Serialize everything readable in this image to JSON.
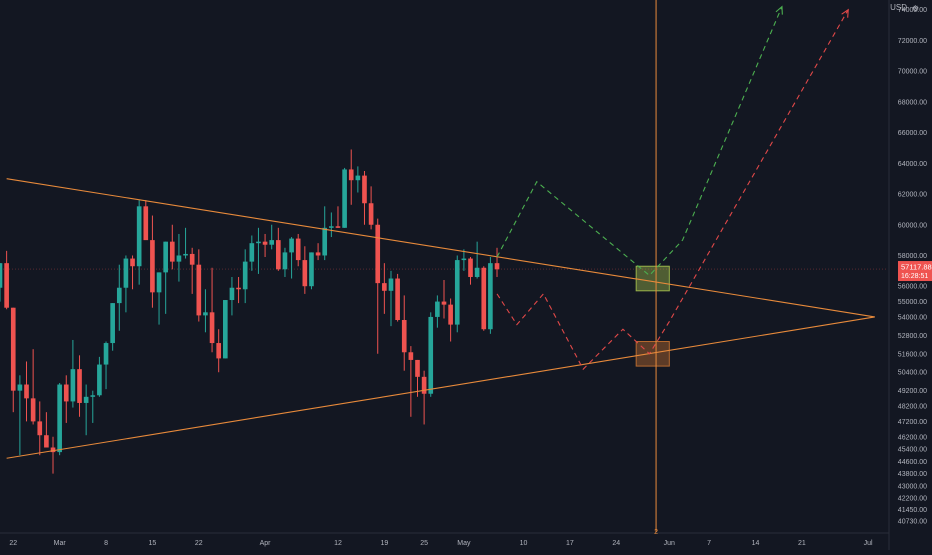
{
  "currency": "USD",
  "currency_suffix": "⚙",
  "price_badge": {
    "price": "57117.88",
    "countdown": "16:28:51"
  },
  "crosshair_label": "2",
  "colors": {
    "background": "#131722",
    "up": "#26a69a",
    "down": "#ef5350",
    "trendline": "#e88a3b",
    "projection_up": "#4caf50",
    "projection_down": "#e04848",
    "crosshair": "#e88a3b",
    "axis_text": "#b2b5be"
  },
  "chart_data": {
    "type": "candlestick",
    "title": "",
    "xlabel": "",
    "ylabel": "",
    "ylim": [
      40000,
      74500
    ],
    "xlim": [
      "2021-02-20",
      "2021-07-04"
    ],
    "grid": false,
    "y_ticks": [
      40730,
      41450,
      42200,
      43000,
      43800,
      44600,
      45400,
      46200,
      47200,
      48200,
      49200,
      50400,
      51600,
      52800,
      54000,
      55000,
      56000,
      58000,
      60000,
      62000,
      64000,
      66000,
      68000,
      70000,
      72000,
      74000
    ],
    "x_ticks": [
      {
        "label": "22",
        "date": "2021-02-22"
      },
      {
        "label": "Mar",
        "date": "2021-03-01"
      },
      {
        "label": "8",
        "date": "2021-03-08"
      },
      {
        "label": "15",
        "date": "2021-03-15"
      },
      {
        "label": "22",
        "date": "2021-03-22"
      },
      {
        "label": "Apr",
        "date": "2021-04-01"
      },
      {
        "label": "12",
        "date": "2021-04-12"
      },
      {
        "label": "19",
        "date": "2021-04-19"
      },
      {
        "label": "25",
        "date": "2021-04-25"
      },
      {
        "label": "May",
        "date": "2021-05-01"
      },
      {
        "label": "10",
        "date": "2021-05-10"
      },
      {
        "label": "17",
        "date": "2021-05-17"
      },
      {
        "label": "24",
        "date": "2021-05-24"
      },
      {
        "label": "Jun",
        "date": "2021-06-01"
      },
      {
        "label": "7",
        "date": "2021-06-07"
      },
      {
        "label": "14",
        "date": "2021-06-14"
      },
      {
        "label": "21",
        "date": "2021-06-21"
      },
      {
        "label": "Jul",
        "date": "2021-07-01"
      }
    ],
    "candles": [
      {
        "date": "2021-02-20",
        "o": 55900,
        "h": 57500,
        "l": 55000,
        "c": 57500
      },
      {
        "date": "2021-02-21",
        "o": 57500,
        "h": 58300,
        "l": 54500,
        "c": 54600
      },
      {
        "date": "2021-02-22",
        "o": 54600,
        "h": 54600,
        "l": 47800,
        "c": 49200
      },
      {
        "date": "2021-02-23",
        "o": 49200,
        "h": 50200,
        "l": 45000,
        "c": 49600
      },
      {
        "date": "2021-02-24",
        "o": 49600,
        "h": 51100,
        "l": 47200,
        "c": 48700
      },
      {
        "date": "2021-02-25",
        "o": 48700,
        "h": 51900,
        "l": 47000,
        "c": 47200
      },
      {
        "date": "2021-02-26",
        "o": 47200,
        "h": 48500,
        "l": 45000,
        "c": 46300
      },
      {
        "date": "2021-02-27",
        "o": 46300,
        "h": 47800,
        "l": 45800,
        "c": 45500
      },
      {
        "date": "2021-02-28",
        "o": 45500,
        "h": 46200,
        "l": 43800,
        "c": 45200
      },
      {
        "date": "2021-03-01",
        "o": 45200,
        "h": 49700,
        "l": 45000,
        "c": 49600
      },
      {
        "date": "2021-03-02",
        "o": 49600,
        "h": 50200,
        "l": 47100,
        "c": 48500
      },
      {
        "date": "2021-03-03",
        "o": 48500,
        "h": 52500,
        "l": 48100,
        "c": 50600
      },
      {
        "date": "2021-03-04",
        "o": 50600,
        "h": 51500,
        "l": 47500,
        "c": 48400
      },
      {
        "date": "2021-03-05",
        "o": 48400,
        "h": 49600,
        "l": 46300,
        "c": 48800
      },
      {
        "date": "2021-03-06",
        "o": 48800,
        "h": 49200,
        "l": 47100,
        "c": 48900
      },
      {
        "date": "2021-03-07",
        "o": 48900,
        "h": 51400,
        "l": 48800,
        "c": 50900
      },
      {
        "date": "2021-03-08",
        "o": 50900,
        "h": 52400,
        "l": 49300,
        "c": 52300
      },
      {
        "date": "2021-03-09",
        "o": 52300,
        "h": 54900,
        "l": 51800,
        "c": 54900
      },
      {
        "date": "2021-03-10",
        "o": 54900,
        "h": 57400,
        "l": 53100,
        "c": 55900
      },
      {
        "date": "2021-03-11",
        "o": 55900,
        "h": 58000,
        "l": 54300,
        "c": 57800
      },
      {
        "date": "2021-03-12",
        "o": 57800,
        "h": 58000,
        "l": 55800,
        "c": 57300
      },
      {
        "date": "2021-03-13",
        "o": 57300,
        "h": 61600,
        "l": 56100,
        "c": 61200
      },
      {
        "date": "2021-03-14",
        "o": 61200,
        "h": 61600,
        "l": 59200,
        "c": 59000
      },
      {
        "date": "2021-03-15",
        "o": 59000,
        "h": 60600,
        "l": 54600,
        "c": 55600
      },
      {
        "date": "2021-03-16",
        "o": 55600,
        "h": 56900,
        "l": 53500,
        "c": 56900
      },
      {
        "date": "2021-03-17",
        "o": 56900,
        "h": 58900,
        "l": 54200,
        "c": 58900
      },
      {
        "date": "2021-03-18",
        "o": 58900,
        "h": 60000,
        "l": 57100,
        "c": 57600
      },
      {
        "date": "2021-03-19",
        "o": 57600,
        "h": 59400,
        "l": 56300,
        "c": 58000
      },
      {
        "date": "2021-03-20",
        "o": 58000,
        "h": 59800,
        "l": 57800,
        "c": 58100
      },
      {
        "date": "2021-03-21",
        "o": 58100,
        "h": 58500,
        "l": 55500,
        "c": 57400
      },
      {
        "date": "2021-03-22",
        "o": 57400,
        "h": 58400,
        "l": 53700,
        "c": 54100
      },
      {
        "date": "2021-03-23",
        "o": 54100,
        "h": 55800,
        "l": 53000,
        "c": 54300
      },
      {
        "date": "2021-03-24",
        "o": 54300,
        "h": 57200,
        "l": 51700,
        "c": 52300
      },
      {
        "date": "2021-03-25",
        "o": 52300,
        "h": 53200,
        "l": 50400,
        "c": 51300
      },
      {
        "date": "2021-03-26",
        "o": 51300,
        "h": 55100,
        "l": 51300,
        "c": 55100
      },
      {
        "date": "2021-03-27",
        "o": 55100,
        "h": 56600,
        "l": 54100,
        "c": 55900
      },
      {
        "date": "2021-03-28",
        "o": 55900,
        "h": 56600,
        "l": 54900,
        "c": 55800
      },
      {
        "date": "2021-03-29",
        "o": 55800,
        "h": 58400,
        "l": 54900,
        "c": 57600
      },
      {
        "date": "2021-03-30",
        "o": 57600,
        "h": 59300,
        "l": 57000,
        "c": 58800
      },
      {
        "date": "2021-03-31",
        "o": 58800,
        "h": 59800,
        "l": 56800,
        "c": 58900
      },
      {
        "date": "2021-04-01",
        "o": 58900,
        "h": 59400,
        "l": 57900,
        "c": 58700
      },
      {
        "date": "2021-04-02",
        "o": 58700,
        "h": 60000,
        "l": 58400,
        "c": 59000
      },
      {
        "date": "2021-04-03",
        "o": 59000,
        "h": 59800,
        "l": 57000,
        "c": 57100
      },
      {
        "date": "2021-04-04",
        "o": 57100,
        "h": 58500,
        "l": 56600,
        "c": 58200
      },
      {
        "date": "2021-04-05",
        "o": 58200,
        "h": 59200,
        "l": 56500,
        "c": 59100
      },
      {
        "date": "2021-04-06",
        "o": 59100,
        "h": 59400,
        "l": 57300,
        "c": 57700
      },
      {
        "date": "2021-04-07",
        "o": 57700,
        "h": 58600,
        "l": 55500,
        "c": 56000
      },
      {
        "date": "2021-04-08",
        "o": 56000,
        "h": 58200,
        "l": 55800,
        "c": 58200
      },
      {
        "date": "2021-04-09",
        "o": 58200,
        "h": 58800,
        "l": 57700,
        "c": 58000
      },
      {
        "date": "2021-04-10",
        "o": 58000,
        "h": 61200,
        "l": 57700,
        "c": 59800
      },
      {
        "date": "2021-04-11",
        "o": 59800,
        "h": 60800,
        "l": 59200,
        "c": 59900
      },
      {
        "date": "2021-04-12",
        "o": 59900,
        "h": 61200,
        "l": 59800,
        "c": 59800
      },
      {
        "date": "2021-04-13",
        "o": 59800,
        "h": 63700,
        "l": 59800,
        "c": 63600
      },
      {
        "date": "2021-04-14",
        "o": 63600,
        "h": 64900,
        "l": 61300,
        "c": 62900
      },
      {
        "date": "2021-04-15",
        "o": 62900,
        "h": 63800,
        "l": 62100,
        "c": 63200
      },
      {
        "date": "2021-04-16",
        "o": 63200,
        "h": 63500,
        "l": 60000,
        "c": 61400
      },
      {
        "date": "2021-04-17",
        "o": 61400,
        "h": 62500,
        "l": 59700,
        "c": 60000
      },
      {
        "date": "2021-04-18",
        "o": 60000,
        "h": 60400,
        "l": 51600,
        "c": 56200
      },
      {
        "date": "2021-04-19",
        "o": 56200,
        "h": 57500,
        "l": 54200,
        "c": 55700
      },
      {
        "date": "2021-04-20",
        "o": 55700,
        "h": 57000,
        "l": 53400,
        "c": 56500
      },
      {
        "date": "2021-04-21",
        "o": 56500,
        "h": 56800,
        "l": 53700,
        "c": 53800
      },
      {
        "date": "2021-04-22",
        "o": 53800,
        "h": 55400,
        "l": 50500,
        "c": 51700
      },
      {
        "date": "2021-04-23",
        "o": 51700,
        "h": 52100,
        "l": 47500,
        "c": 51200
      },
      {
        "date": "2021-04-24",
        "o": 51200,
        "h": 51200,
        "l": 48800,
        "c": 50100
      },
      {
        "date": "2021-04-25",
        "o": 50100,
        "h": 50500,
        "l": 47000,
        "c": 49000
      },
      {
        "date": "2021-04-26",
        "o": 49000,
        "h": 54300,
        "l": 48800,
        "c": 54000
      },
      {
        "date": "2021-04-27",
        "o": 54000,
        "h": 55400,
        "l": 53300,
        "c": 55000
      },
      {
        "date": "2021-04-28",
        "o": 55000,
        "h": 56400,
        "l": 53900,
        "c": 54800
      },
      {
        "date": "2021-04-29",
        "o": 54800,
        "h": 55200,
        "l": 52400,
        "c": 53500
      },
      {
        "date": "2021-04-30",
        "o": 53500,
        "h": 58000,
        "l": 53000,
        "c": 57700
      },
      {
        "date": "2021-05-01",
        "o": 57700,
        "h": 58400,
        "l": 57000,
        "c": 57800
      },
      {
        "date": "2021-05-02",
        "o": 57800,
        "h": 57900,
        "l": 56100,
        "c": 56600
      },
      {
        "date": "2021-05-03",
        "o": 56600,
        "h": 58900,
        "l": 56500,
        "c": 57200
      },
      {
        "date": "2021-05-04",
        "o": 57200,
        "h": 57300,
        "l": 53100,
        "c": 53200
      },
      {
        "date": "2021-05-05",
        "o": 53200,
        "h": 57900,
        "l": 52900,
        "c": 57500
      },
      {
        "date": "2021-05-06",
        "o": 57500,
        "h": 58500,
        "l": 56600,
        "c": 57100
      }
    ],
    "trendlines": [
      {
        "name": "upper-resistance",
        "points": [
          {
            "x": "2021-02-21",
            "y": 63000
          },
          {
            "x": "2021-07-02",
            "y": 54000
          }
        ]
      },
      {
        "name": "lower-support",
        "points": [
          {
            "x": "2021-02-21",
            "y": 44800
          },
          {
            "x": "2021-07-02",
            "y": 54000
          }
        ]
      }
    ],
    "projections": [
      {
        "name": "bullish-path",
        "color": "#4caf50",
        "points": [
          {
            "x": "2021-05-06",
            "y": 57900
          },
          {
            "x": "2021-05-12",
            "y": 62800
          },
          {
            "x": "2021-05-29",
            "y": 56700
          },
          {
            "x": "2021-06-03",
            "y": 59000
          },
          {
            "x": "2021-06-18",
            "y": 74200
          }
        ]
      },
      {
        "name": "bearish-path",
        "color": "#e04848",
        "points": [
          {
            "x": "2021-05-06",
            "y": 55500
          },
          {
            "x": "2021-05-09",
            "y": 53500
          },
          {
            "x": "2021-05-13",
            "y": 55500
          },
          {
            "x": "2021-05-19",
            "y": 50600
          },
          {
            "x": "2021-05-25",
            "y": 53200
          },
          {
            "x": "2021-05-29",
            "y": 51600
          },
          {
            "x": "2021-06-01",
            "y": 53700
          },
          {
            "x": "2021-06-28",
            "y": 74000
          }
        ]
      }
    ],
    "zones": [
      {
        "name": "bull-zone",
        "color": "#9ab34a",
        "x_start": "2021-05-27",
        "x_end": "2021-06-01",
        "y_low": 55700,
        "y_high": 57300
      },
      {
        "name": "bear-zone",
        "color": "#b6692f",
        "x_start": "2021-05-27",
        "x_end": "2021-06-01",
        "y_low": 50800,
        "y_high": 52400
      }
    ],
    "current_price": 57117.88,
    "crosshair": {
      "date": "2021-05-30",
      "price": 57117.88
    }
  }
}
